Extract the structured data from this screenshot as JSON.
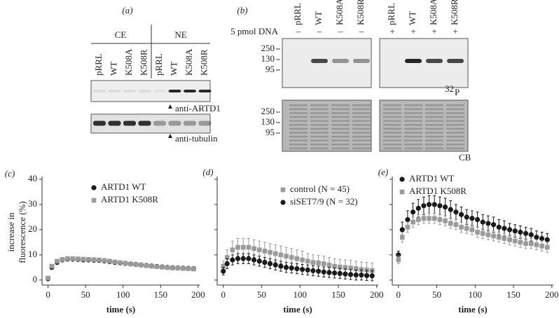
{
  "figure": {
    "panel_a": {
      "label": "(a)",
      "groups": [
        "CE",
        "NE"
      ],
      "lanes": [
        "pRRL",
        "WT",
        "K508A",
        "K508R",
        "pRRL",
        "WT",
        "K508A",
        "K508R"
      ],
      "blots": [
        "anti-ARTD1",
        "anti-tubulin"
      ]
    },
    "panel_b": {
      "label": "(b)",
      "lanes": [
        "pRRL",
        "WT",
        "K508A",
        "K508R",
        "pRRL",
        "WT",
        "K508A",
        "K508R"
      ],
      "dna_label": "5 pmol DNA",
      "dna": [
        "–",
        "–",
        "–",
        "–",
        "+",
        "+",
        "+",
        "+"
      ],
      "markers": [
        "250",
        "130",
        "95"
      ],
      "isotope": {
        "mass": "32",
        "element": "P"
      },
      "stain": "CB"
    }
  },
  "chart_data": [
    {
      "type": "scatter",
      "label": "(c)",
      "ylabel": [
        "increase in",
        "fluorescence (%)"
      ],
      "xlabel": "time (s)",
      "show_ytick_labels": true,
      "x": [
        0,
        5,
        12,
        19,
        26,
        33,
        40,
        47,
        54,
        61,
        68,
        75,
        82,
        89,
        96,
        103,
        110,
        117,
        124,
        131,
        138,
        145,
        152,
        159,
        166,
        173,
        180,
        187,
        194
      ],
      "xlim": [
        -8,
        202
      ],
      "xticks": [
        0,
        50,
        100,
        150,
        200
      ],
      "ylim": [
        -2,
        40
      ],
      "yticks": [
        0,
        10,
        20,
        30,
        40
      ],
      "series": [
        {
          "name": "ARTD1 WT",
          "color": "#1a1a1a",
          "marker": "circle",
          "values": [
            0.5,
            5,
            7,
            8,
            8.3,
            8.3,
            8.2,
            8,
            8,
            7.9,
            7.8,
            7.6,
            7.3,
            7,
            6.8,
            6.6,
            6.4,
            6.2,
            6,
            5.8,
            5.6,
            5.4,
            5.2,
            5,
            4.9,
            4.8,
            4.7,
            4.6,
            4.5
          ],
          "errors": [
            0.5,
            0.6,
            0.6,
            0.6,
            0.6,
            0.6,
            0.6,
            0.6,
            0.6,
            0.6,
            0.6,
            0.6,
            0.6,
            0.6,
            0.6,
            0.6,
            0.6,
            0.6,
            0.6,
            0.6,
            0.6,
            0.6,
            0.6,
            0.6,
            0.6,
            0.6,
            0.6,
            0.6,
            0.6
          ]
        },
        {
          "name": "ARTD1 K508R",
          "color": "#9a9a9a",
          "marker": "square",
          "values": [
            0.8,
            5.5,
            7.5,
            8.2,
            8.5,
            8.5,
            8.4,
            8.3,
            8.2,
            8.1,
            8,
            7.8,
            7.5,
            7.2,
            6.9,
            6.7,
            6.4,
            6.2,
            6,
            5.7,
            5.5,
            5.3,
            5.1,
            4.9,
            4.8,
            4.7,
            4.6,
            4.5,
            4.4
          ],
          "errors": [
            0.5,
            0.6,
            0.6,
            0.6,
            0.6,
            0.6,
            0.6,
            0.6,
            0.6,
            0.6,
            0.6,
            0.6,
            0.6,
            0.6,
            0.6,
            0.6,
            0.6,
            0.6,
            0.6,
            0.6,
            0.6,
            0.6,
            0.6,
            0.6,
            0.6,
            0.6,
            0.6,
            0.6,
            0.6
          ]
        }
      ]
    },
    {
      "type": "scatter",
      "label": "(d)",
      "xlabel": "time (s)",
      "show_ytick_labels": false,
      "x": [
        0,
        5,
        12,
        19,
        26,
        33,
        40,
        47,
        54,
        61,
        68,
        75,
        82,
        89,
        96,
        103,
        110,
        117,
        124,
        131,
        138,
        145,
        152,
        159,
        166,
        173,
        180,
        187,
        194
      ],
      "xlim": [
        -8,
        202
      ],
      "xticks": [
        0,
        50,
        100,
        150,
        200
      ],
      "ylim": [
        -2,
        40
      ],
      "yticks": [
        0,
        10,
        20,
        30,
        40
      ],
      "series": [
        {
          "name": "control (N = 45)",
          "color": "#9a9a9a",
          "marker": "square",
          "values": [
            5.5,
            9,
            12,
            13,
            13,
            13,
            12.5,
            12,
            11.5,
            11,
            10.5,
            10,
            9.5,
            9,
            8.5,
            8,
            7.5,
            7,
            6.8,
            6.5,
            6,
            5.5,
            5.2,
            5,
            4.8,
            4.5,
            4.2,
            4,
            3.8
          ],
          "errors": [
            2,
            3,
            3.5,
            3.5,
            3.5,
            3.5,
            3.5,
            3.5,
            3.5,
            3.5,
            3.5,
            3.5,
            3.5,
            3.5,
            3.5,
            3.5,
            3,
            3,
            3,
            3,
            3,
            3,
            3,
            3,
            3,
            3,
            3,
            3,
            3
          ]
        },
        {
          "name": "siSET7/9 (N = 32)",
          "color": "#1a1a1a",
          "marker": "circle",
          "values": [
            3.5,
            6.5,
            8,
            8.5,
            8.5,
            8.5,
            8,
            7.5,
            7,
            6.5,
            6,
            5.5,
            5,
            4.8,
            4.5,
            4.2,
            4,
            3.7,
            3.5,
            3.2,
            3,
            2.8,
            2.6,
            2.4,
            2.2,
            2,
            2,
            1.8,
            1.7
          ],
          "errors": [
            1.5,
            2,
            2,
            2,
            2,
            2,
            2,
            2,
            2,
            2,
            2,
            2,
            2,
            2,
            2,
            2,
            2,
            2,
            2,
            2,
            2,
            2,
            2,
            2,
            2,
            2,
            2,
            2,
            2
          ]
        }
      ]
    },
    {
      "type": "scatter",
      "label": "(e)",
      "xlabel": "time (s)",
      "show_ytick_labels": false,
      "x": [
        0,
        5,
        12,
        19,
        26,
        33,
        40,
        47,
        54,
        61,
        68,
        75,
        82,
        89,
        96,
        103,
        110,
        117,
        124,
        131,
        138,
        145,
        152,
        159,
        166,
        173,
        180,
        187,
        194
      ],
      "xlim": [
        -8,
        202
      ],
      "xticks": [
        0,
        50,
        100,
        150,
        200
      ],
      "ylim": [
        -2,
        40
      ],
      "yticks": [
        0,
        10,
        20,
        30,
        40
      ],
      "series": [
        {
          "name": "ARTD1 WT",
          "color": "#1a1a1a",
          "marker": "circle",
          "values": [
            10,
            20,
            24,
            27,
            28.5,
            29.5,
            30,
            30,
            29.5,
            29,
            28,
            27,
            26,
            25,
            24.5,
            24,
            23,
            22.5,
            22,
            21,
            20.5,
            20,
            19.5,
            19,
            18.5,
            18,
            17,
            16.5,
            16
          ],
          "errors": [
            1.5,
            3,
            3.5,
            3.5,
            3.5,
            3.5,
            3.5,
            3.5,
            3.5,
            3.5,
            3.5,
            3,
            3,
            3,
            3,
            3,
            3,
            3,
            3,
            3,
            3,
            2.5,
            2.5,
            2.5,
            2.5,
            2.5,
            2.5,
            2.5,
            2.5
          ]
        },
        {
          "name": "ARTD1 K508R",
          "color": "#9a9a9a",
          "marker": "square",
          "values": [
            8,
            17,
            21,
            23,
            24,
            24.5,
            24.5,
            24.5,
            24,
            23.5,
            22.5,
            22,
            21,
            20.5,
            20,
            19,
            18.5,
            18,
            17.5,
            17,
            16.5,
            16,
            15.5,
            15,
            14.5,
            14.5,
            14,
            13.5,
            13
          ],
          "errors": [
            1.5,
            2,
            2,
            2,
            2,
            2,
            2,
            2,
            2,
            2,
            2,
            2,
            2,
            2,
            2,
            2,
            2,
            2,
            2,
            2,
            2,
            2,
            2,
            2,
            2,
            2,
            2,
            2,
            2
          ]
        }
      ]
    }
  ]
}
